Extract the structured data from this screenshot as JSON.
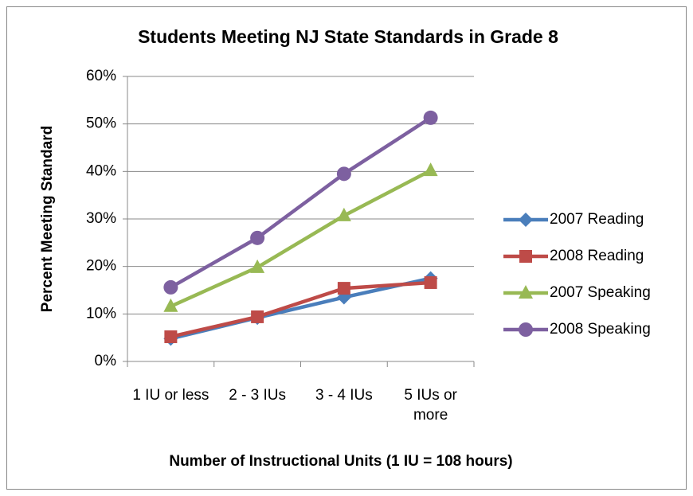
{
  "chart_data": {
    "type": "line",
    "title": "Students Meeting NJ State Standards in Grade 8",
    "x_label": "Number of Instructional Units (1 IU = 108 hours)",
    "y_label": "Percent Meeting Standard",
    "categories": [
      "1 IU or less",
      "2 - 3 IUs",
      "3 - 4 IUs",
      "5 IUs or more"
    ],
    "series": [
      {
        "name": "2007 Reading",
        "color": "#4a7ebb",
        "marker": "diamond",
        "values": [
          4.8,
          9.2,
          13.5,
          17.5
        ]
      },
      {
        "name": "2008 Reading",
        "color": "#be4b48",
        "marker": "square",
        "values": [
          5.2,
          9.4,
          15.4,
          16.6
        ]
      },
      {
        "name": "2007 Speaking",
        "color": "#98b954",
        "marker": "triangle",
        "values": [
          11.6,
          19.8,
          30.7,
          40.2
        ]
      },
      {
        "name": "2008 Speaking",
        "color": "#7d60a0",
        "marker": "circle",
        "values": [
          15.6,
          26,
          39.5,
          51.3
        ]
      }
    ],
    "ylim": [
      0,
      60
    ],
    "yticks": [
      {
        "value": 0,
        "label": "0%"
      },
      {
        "value": 10,
        "label": "10%"
      },
      {
        "value": 20,
        "label": "20%"
      },
      {
        "value": 30,
        "label": "30%"
      },
      {
        "value": 40,
        "label": "40%"
      },
      {
        "value": 50,
        "label": "50%"
      },
      {
        "value": 60,
        "label": "60%"
      }
    ],
    "grid": true,
    "legend": "right"
  }
}
